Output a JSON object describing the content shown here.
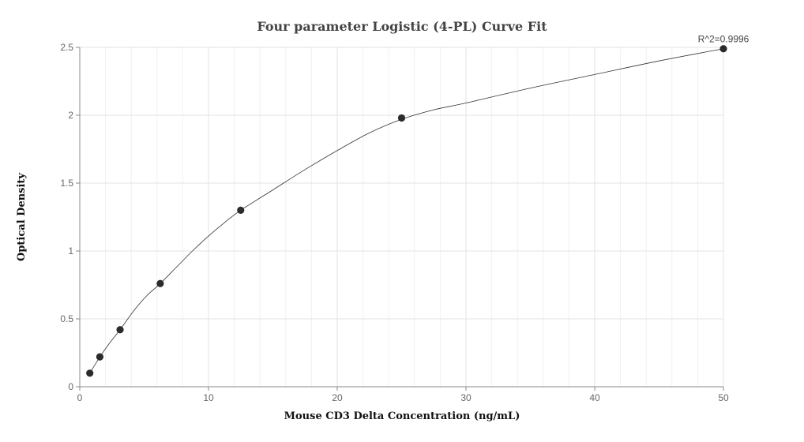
{
  "chart_data": {
    "type": "scatter",
    "title": "Four parameter Logistic (4-PL) Curve Fit",
    "xlabel": "Mouse CD3 Delta Concentration (ng/mL)",
    "ylabel": "Optical Density",
    "xlim": [
      0,
      50
    ],
    "ylim": [
      0,
      2.5
    ],
    "x_ticks": [
      0,
      10,
      20,
      30,
      40,
      50
    ],
    "y_ticks": [
      0,
      0.5,
      1,
      1.5,
      2,
      2.5
    ],
    "x_tick_labels": [
      "0",
      "10",
      "20",
      "30",
      "40",
      "50"
    ],
    "y_tick_labels": [
      "0",
      "0.5",
      "1",
      "1.5",
      "2",
      "2.5"
    ],
    "grid": true,
    "annotation": "R^2=0.9996",
    "series": [
      {
        "x": [
          0.78,
          1.56,
          3.13,
          6.25,
          12.5,
          25,
          50
        ],
        "y": [
          0.1,
          0.22,
          0.42,
          0.76,
          1.3,
          1.98,
          2.49
        ]
      }
    ],
    "curve": {
      "x": [
        0.78,
        1.56,
        2.3,
        3.13,
        4.2,
        5.2,
        6.25,
        7.5,
        8.75,
        10,
        11.25,
        12.5,
        15,
        17.5,
        20,
        22.5,
        25,
        27.5,
        30,
        35,
        40,
        45,
        50
      ],
      "y": [
        0.1,
        0.22,
        0.32,
        0.42,
        0.56,
        0.67,
        0.76,
        0.88,
        1.0,
        1.11,
        1.21,
        1.3,
        1.45,
        1.6,
        1.74,
        1.87,
        1.97,
        2.04,
        2.09,
        2.2,
        2.3,
        2.4,
        2.49
      ]
    },
    "colors": {
      "point": "#2b2b2b",
      "curve": "#333333",
      "grid": "#e3e3ea"
    }
  }
}
